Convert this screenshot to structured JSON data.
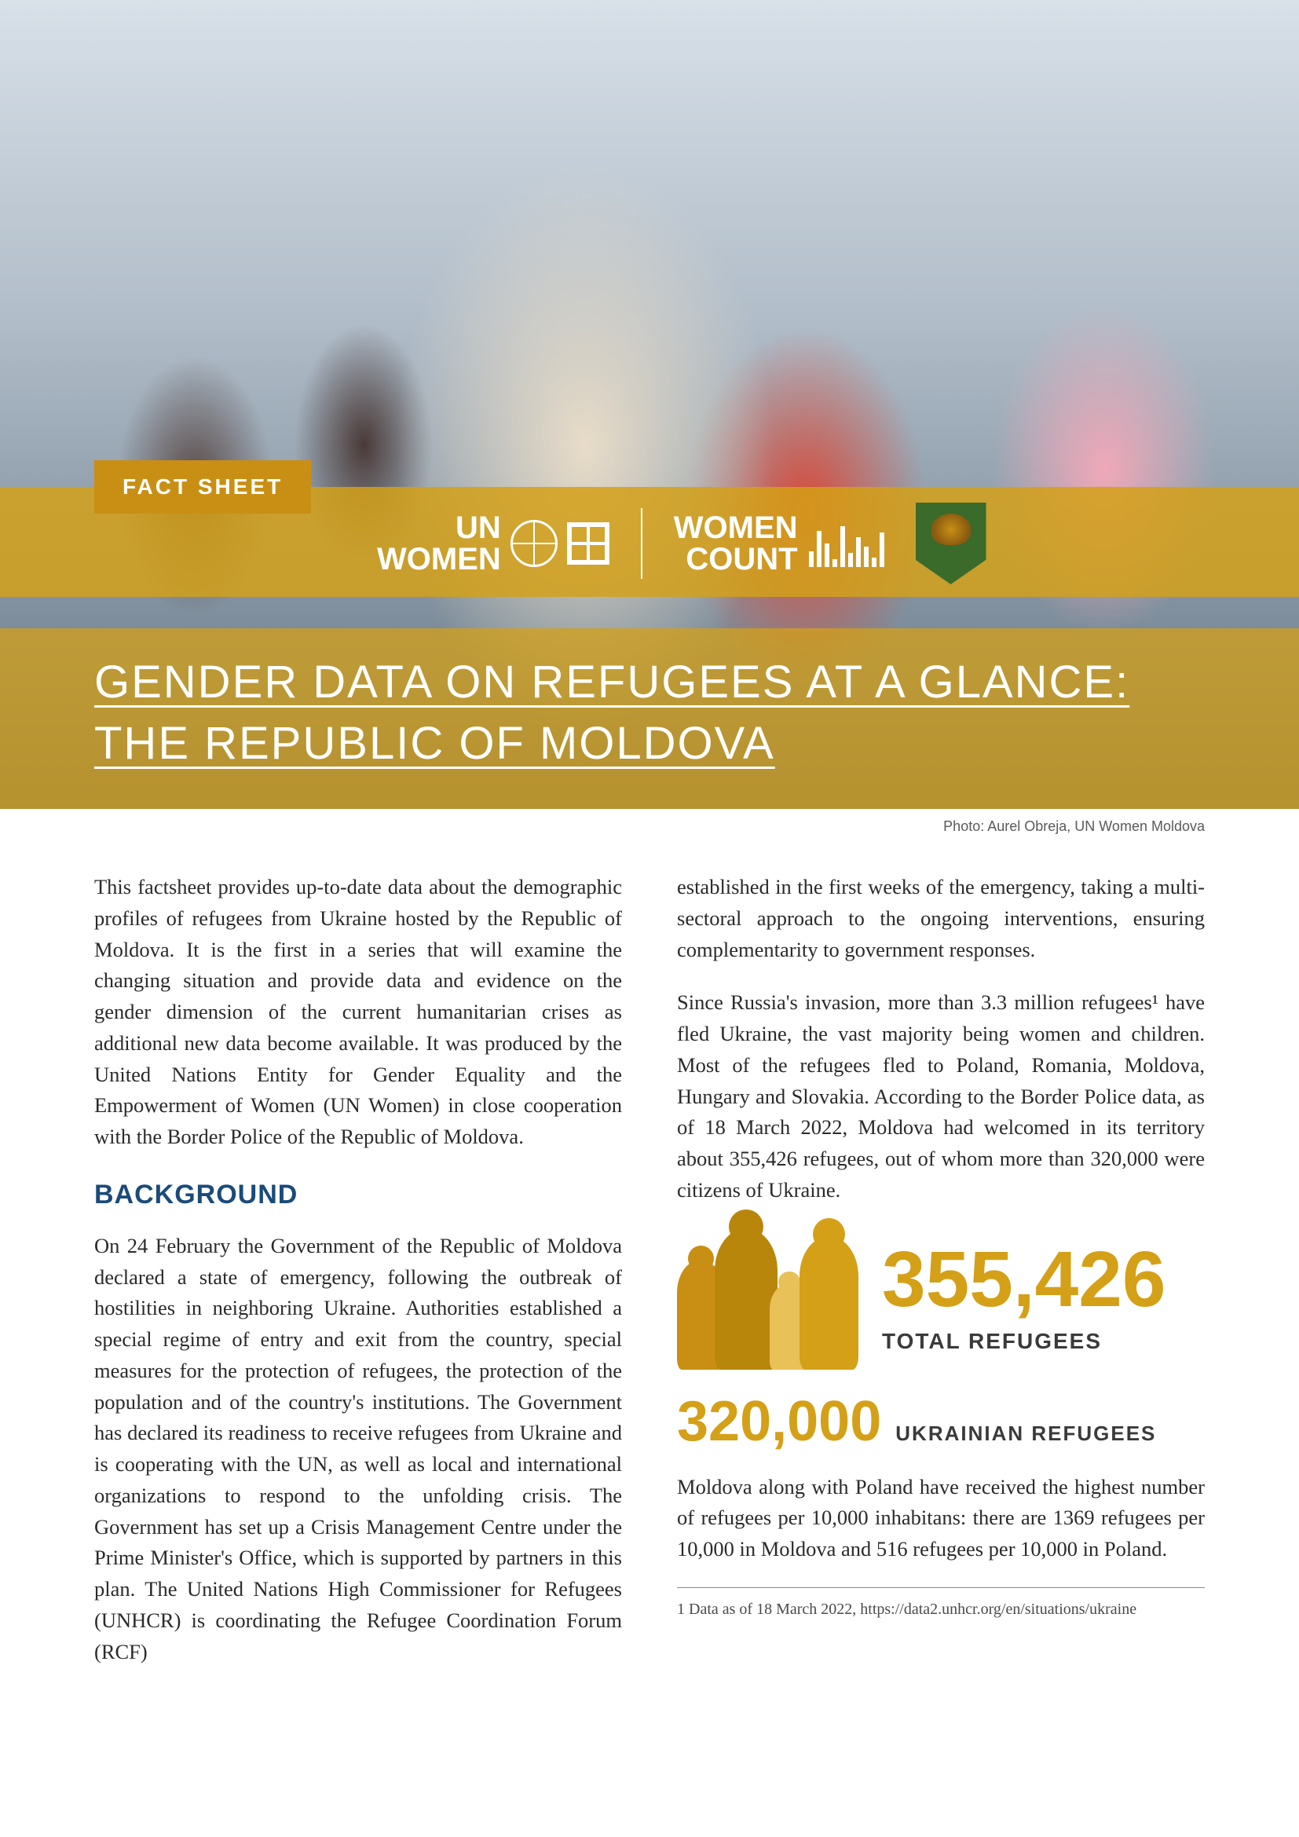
{
  "hero": {
    "badge": "FACT SHEET",
    "photo_credit": "Photo: Aurel Obreja, UN Women Moldova",
    "title": "GENDER DATA ON REFUGEES AT A GLANCE: THE REPUBLIC OF MOLDOVA",
    "colors": {
      "banner_overlay": "rgba(212,160,23,0.85)",
      "title_overlay": "rgba(212,160,23,0.75)",
      "badge_bg": "#c98f14",
      "badge_text": "#ffffff",
      "title_text": "#ffffff"
    }
  },
  "logos": {
    "unwomen_line1": "UN",
    "unwomen_line2": "WOMEN",
    "womencount_line1": "WOMEN",
    "womencount_line2": "COUNT",
    "wc_bar_heights": [
      20,
      46,
      30,
      10,
      52,
      18,
      38,
      26,
      12,
      44
    ],
    "shield_bg": "#3a6b2a"
  },
  "body": {
    "intro": "This factsheet provides up-to-date data about the demographic profiles of refugees from Ukraine hosted by the Republic of Moldova. It is the first in a series that will examine the changing situation and provide data and evidence on the gender dimension of the current humanitarian crises as additional new data become available. It was produced by the United Nations Entity for Gender Equality and the Empowerment of Women (UN Women) in close cooperation with the Border Police of the Republic of Moldova.",
    "background_heading": "BACKGROUND",
    "background_p1": "On 24 February the Government of the Republic of Moldova declared a state of emergency, following the outbreak of hostilities in neighboring Ukraine. Authorities established a special regime of entry and exit from the country, special measures for the protection of refugees, the protection of the population and of the country's institutions. The Government has declared its readiness to receive refugees from Ukraine and is cooperating with the UN, as well as local and international organizations to respond to the unfolding crisis. The Government has set up a Crisis Management Centre under the Prime Minister's Office, which is supported by partners in this plan. The United Nations High Commissioner for Refugees (UNHCR) is coordinating the Refugee Coordination Forum (RCF)",
    "col2_p1": "established in the first weeks of the emergency, taking a multi-sectoral approach to the ongoing interventions, ensuring complementarity to government responses.",
    "col2_p2": "Since Russia's invasion, more than 3.3 million refugees¹ have fled Ukraine, the vast majority being women and children. Most of the refugees fled to Poland, Romania, Moldova, Hungary and Slovakia. According to the Border Police data, as of 18 March 2022, Moldova had welcomed in its territory about 355,426 refugees, out of whom more than 320,000 were citizens of Ukraine.",
    "col2_p3": "Moldova along with Poland have received the highest number of refugees per 10,000 inhabitans: there are 1369 refugees per 10,000 in Moldova and 516 refugees per 10,000 in Poland.",
    "footnote": "1 Data as of 18 March 2022, https://data2.unhcr.org/en/situations/ukraine",
    "heading_color": "#1a4b7a",
    "text_color": "#2a2a2a"
  },
  "stats": {
    "total_number": "355,426",
    "total_label": "TOTAL REFUGEES",
    "ukr_number": "320,000",
    "ukr_label": "UKRAINIAN REFUGEES",
    "number_color": "#d4a017",
    "label_color": "#3a3a3a",
    "icon_colors": [
      "#c98f14",
      "#b8860b",
      "#e8c158",
      "#d4a017"
    ]
  }
}
